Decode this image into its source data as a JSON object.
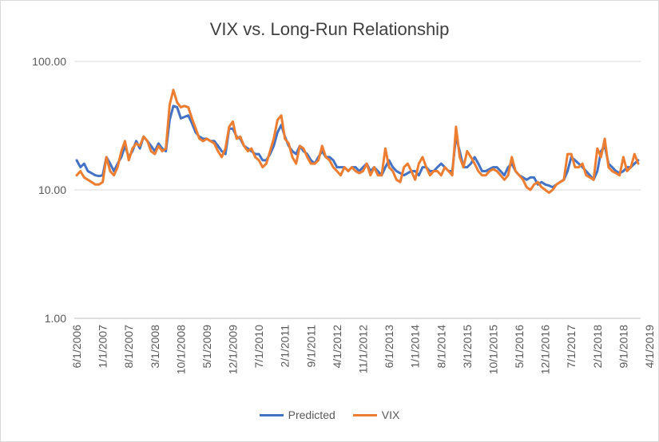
{
  "chart_data": {
    "type": "line",
    "title": "VIX vs. Long-Run Relationship",
    "yscale": "log",
    "ylim": [
      1,
      100
    ],
    "yticks": [
      "1.00",
      "10.00",
      "100.00"
    ],
    "grid": true,
    "legend_position": "bottom",
    "x_tick_labels": [
      "6/1/2006",
      "1/1/2007",
      "8/1/2007",
      "3/1/2008",
      "10/1/2008",
      "5/1/2009",
      "12/1/2009",
      "7/1/2010",
      "2/1/2011",
      "9/1/2011",
      "4/1/2012",
      "11/1/2012",
      "6/1/2013",
      "1/1/2014",
      "8/1/2014",
      "3/1/2015",
      "10/1/2015",
      "5/1/2016",
      "12/1/2016",
      "7/1/2017",
      "2/1/2018",
      "9/1/2018",
      "4/1/2019"
    ],
    "x_range": [
      "6/1/2006",
      "12/1/2019"
    ],
    "series": [
      {
        "name": "Predicted",
        "color": "#4472c4",
        "values": [
          17,
          15,
          16,
          14,
          13.5,
          13,
          12.8,
          13,
          18,
          16,
          14,
          16,
          18,
          22,
          18,
          20,
          24,
          21,
          26,
          24,
          22,
          20,
          23,
          21,
          20,
          35,
          45,
          44,
          36,
          37,
          38,
          33,
          28,
          26,
          25,
          25,
          24,
          24,
          22,
          20,
          19,
          30,
          30,
          26,
          25,
          22,
          21,
          20,
          19,
          19,
          17,
          17,
          19,
          22,
          28,
          32,
          26,
          22,
          20,
          19,
          22,
          20,
          19,
          17,
          16,
          18,
          20,
          18,
          18,
          17,
          15,
          15,
          15,
          14,
          15,
          15,
          14,
          15,
          16,
          14,
          15,
          14,
          13,
          15,
          17,
          15,
          14,
          13.5,
          13,
          13.5,
          14,
          14,
          13,
          15,
          15,
          14,
          14,
          15,
          16,
          15,
          14,
          14,
          26,
          20,
          15,
          15,
          16,
          18,
          16,
          14,
          14,
          14.5,
          15,
          15,
          14,
          13,
          15,
          16,
          14,
          13,
          12.5,
          12,
          12.5,
          12.5,
          11,
          11.5,
          11,
          10.8,
          10.5,
          11,
          11.5,
          12,
          14,
          18,
          17,
          16,
          15,
          14,
          13,
          12,
          14,
          20,
          22,
          16,
          15,
          14,
          13.5,
          14,
          15,
          15,
          16,
          17
        ]
      },
      {
        "name": "VIX",
        "color": "#ed7d31",
        "values": [
          13,
          14,
          12.5,
          12,
          11.5,
          11,
          11,
          11.5,
          18,
          14,
          13,
          15,
          20,
          24,
          17,
          21,
          23,
          22,
          26,
          24,
          20,
          19,
          22,
          20,
          21,
          46,
          60,
          48,
          44,
          45,
          44,
          36,
          30,
          25,
          24,
          25,
          24,
          23,
          20,
          18,
          21,
          31,
          34,
          25,
          26,
          22,
          20,
          21,
          18,
          17,
          15,
          16,
          20,
          25,
          35,
          38,
          25,
          23,
          18,
          16,
          22,
          21,
          18,
          16,
          16,
          17,
          22,
          18,
          17,
          15,
          14,
          13,
          15,
          14,
          15,
          14,
          13.5,
          14,
          16,
          13,
          15,
          13,
          13,
          21,
          15,
          14,
          12,
          11.5,
          15,
          16,
          14,
          12,
          16,
          18,
          15,
          13,
          14,
          14,
          13,
          15,
          14,
          13,
          31,
          18,
          15,
          20,
          18,
          16,
          14,
          13,
          13,
          14,
          14.5,
          14,
          13,
          12,
          13,
          18,
          14,
          13,
          12,
          10.5,
          10,
          11,
          11.5,
          10.5,
          10,
          9.5,
          10,
          11,
          11.5,
          12,
          19,
          19,
          15,
          15,
          16,
          13,
          12.5,
          12,
          21,
          18,
          25,
          15,
          14,
          13.5,
          13,
          18,
          14,
          15,
          19,
          16
        ]
      }
    ]
  }
}
